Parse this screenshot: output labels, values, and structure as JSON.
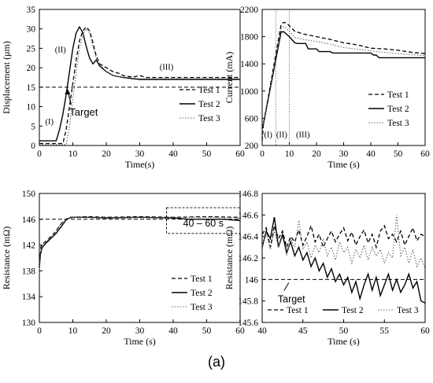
{
  "caption": "(a)",
  "colors": {
    "ink": "#000000",
    "test3": "#666666"
  },
  "chart_data": [
    {
      "type": "line",
      "panel": "top-left",
      "xlabel": "Time(s)",
      "ylabel": "Displacement (μm)",
      "xlim": [
        0,
        60
      ],
      "ylim": [
        0,
        35
      ],
      "xticks": [
        0,
        10,
        20,
        30,
        40,
        50,
        60
      ],
      "yticks": [
        0,
        5,
        10,
        15,
        20,
        25,
        30,
        35
      ],
      "legend": "right",
      "reference_lines": [
        {
          "y": 15,
          "label": "Target"
        }
      ],
      "annotations": [
        {
          "text": "(I)",
          "x": 3,
          "y": 5.5
        },
        {
          "text": "(II)",
          "x": 6.3,
          "y": 24
        },
        {
          "text": "(III)",
          "x": 38,
          "y": 19.5
        }
      ],
      "series": [
        {
          "name": "Test 1",
          "style": "dashed",
          "x": [
            0,
            7,
            8,
            9,
            10,
            11,
            12,
            13,
            14,
            15,
            16,
            17,
            18,
            20,
            22,
            24,
            25,
            26,
            28,
            30,
            32,
            35,
            40,
            45,
            50,
            55,
            60
          ],
          "y": [
            0.5,
            0.5,
            4,
            10,
            16,
            22,
            27,
            29.5,
            30.5,
            29.5,
            26.5,
            23,
            21,
            20,
            19,
            18.5,
            18,
            17.8,
            17.6,
            18,
            17.5,
            17.5,
            17.5,
            17.5,
            17.5,
            17.5,
            17.5
          ]
        },
        {
          "name": "Test 2",
          "style": "solid",
          "x": [
            0,
            5,
            6,
            7,
            8,
            9,
            10,
            11,
            12,
            13,
            14,
            15,
            16,
            17,
            18,
            20,
            22,
            25,
            30,
            35,
            40,
            45,
            50,
            55,
            60
          ],
          "y": [
            1.2,
            1.2,
            4,
            8,
            13,
            19,
            25,
            29,
            30.5,
            29,
            25.5,
            22.5,
            21,
            22,
            20.5,
            19,
            18,
            17.5,
            17,
            17,
            17,
            17,
            17,
            17,
            17
          ]
        },
        {
          "name": "Test 3",
          "style": "dotted",
          "x": [
            0,
            8,
            9,
            10,
            11,
            12,
            13,
            14,
            15,
            16,
            17,
            18,
            20,
            22,
            25,
            30,
            35,
            40,
            45,
            50,
            55,
            60
          ],
          "y": [
            0.2,
            0.2,
            5,
            12,
            19,
            25,
            28.5,
            30,
            29,
            25.5,
            22.5,
            21,
            19,
            18,
            17.5,
            17.2,
            17.2,
            17.2,
            17.2,
            17.2,
            17.2,
            17.2
          ]
        }
      ]
    },
    {
      "type": "line",
      "panel": "top-right",
      "xlabel": "Time (s)",
      "ylabel": "Current (mA)",
      "xlim": [
        0,
        60
      ],
      "ylim": [
        200,
        2200
      ],
      "xticks": [
        0,
        10,
        20,
        30,
        40,
        50,
        60
      ],
      "yticks": [
        200,
        600,
        1000,
        1400,
        1800,
        2200
      ],
      "legend": "right",
      "vertical_lines": [
        5,
        10
      ],
      "annotations": [
        {
          "text": "(I)",
          "x": 2.2,
          "y": 320
        },
        {
          "text": "(II)",
          "x": 7.2,
          "y": 320
        },
        {
          "text": "(III)",
          "x": 15,
          "y": 320
        }
      ],
      "series": [
        {
          "name": "Test 1",
          "style": "dashed",
          "x": [
            0,
            0.5,
            7,
            8,
            9,
            10,
            12,
            15,
            20,
            25,
            30,
            35,
            40,
            45,
            50,
            55,
            60
          ],
          "y": [
            270,
            520,
            1980,
            2010,
            2000,
            1960,
            1880,
            1840,
            1800,
            1760,
            1710,
            1680,
            1630,
            1620,
            1600,
            1570,
            1550
          ]
        },
        {
          "name": "Test 2",
          "style": "solid",
          "x": [
            0,
            0.5,
            7,
            8,
            10,
            12,
            13,
            16,
            17,
            20,
            21,
            25,
            26,
            40,
            41,
            42,
            43,
            50,
            60
          ],
          "y": [
            440,
            520,
            1870,
            1870,
            1800,
            1710,
            1700,
            1700,
            1620,
            1620,
            1580,
            1580,
            1560,
            1560,
            1530,
            1530,
            1490,
            1490,
            1490
          ]
        },
        {
          "name": "Test 3",
          "style": "dotted",
          "x": [
            0,
            0.5,
            7,
            8,
            10,
            12,
            15,
            20,
            25,
            30,
            40,
            50,
            60
          ],
          "y": [
            400,
            520,
            1920,
            1950,
            1880,
            1790,
            1760,
            1730,
            1690,
            1640,
            1590,
            1550,
            1520
          ]
        }
      ]
    },
    {
      "type": "line",
      "panel": "bottom-left",
      "xlabel": "Time (s)",
      "ylabel": "Resistance (mΩ)",
      "xlim": [
        0,
        60
      ],
      "ylim": [
        130,
        150
      ],
      "xticks": [
        0,
        10,
        20,
        30,
        40,
        50,
        60
      ],
      "yticks": [
        130,
        134,
        138,
        142,
        146,
        150
      ],
      "legend": "right",
      "reference_lines": [
        {
          "y": 146
        }
      ],
      "highlight_box": {
        "x": [
          38,
          60
        ],
        "y": [
          143.8,
          147.8
        ],
        "label": "40 – 60 s"
      },
      "series": [
        {
          "name": "Test 1",
          "style": "dashed",
          "x": [
            0,
            0.5,
            1,
            2,
            3,
            4,
            5,
            6,
            7,
            8,
            9,
            10,
            15,
            20,
            30,
            40,
            50,
            60
          ],
          "y": [
            138.5,
            141.8,
            142.2,
            142.6,
            143.1,
            143.6,
            144.2,
            145.0,
            145.6,
            146.0,
            146.3,
            146.3,
            146.4,
            146.3,
            146.4,
            146.3,
            146.4,
            146.3
          ]
        },
        {
          "name": "Test 2",
          "style": "solid",
          "x": [
            0,
            0.3,
            0.8,
            1.5,
            2,
            3,
            4,
            5,
            6,
            7,
            8,
            9,
            10,
            15,
            20,
            30,
            40,
            45,
            50,
            55,
            60
          ],
          "y": [
            138.5,
            140.5,
            141.6,
            142.0,
            142.3,
            142.8,
            143.3,
            143.8,
            144.5,
            145.2,
            145.9,
            146.2,
            146.3,
            146.3,
            146.2,
            146.3,
            146.2,
            146.0,
            146.0,
            146.0,
            145.8
          ]
        },
        {
          "name": "Test 3",
          "style": "dotted",
          "x": [
            0,
            0.5,
            1,
            2,
            3,
            4,
            5,
            6,
            7,
            8,
            9,
            10,
            15,
            20,
            30,
            40,
            50,
            60
          ],
          "y": [
            138.3,
            141.5,
            142.0,
            142.5,
            143.0,
            143.5,
            144.1,
            144.9,
            145.5,
            145.9,
            146.2,
            146.3,
            146.3,
            146.3,
            146.3,
            146.3,
            146.3,
            146.2
          ]
        }
      ]
    },
    {
      "type": "line",
      "panel": "bottom-right",
      "xlabel": "Time (s)",
      "ylabel": "Resistance (mΩ)",
      "xlim": [
        40,
        60
      ],
      "ylim": [
        145.6,
        146.8
      ],
      "xticks": [
        40,
        45,
        50,
        55,
        60
      ],
      "yticks": [
        145.6,
        145.8,
        146,
        146.2,
        146.4,
        146.6,
        146.8
      ],
      "legend": "bottom",
      "reference_lines": [
        {
          "y": 146,
          "label": "Target"
        }
      ],
      "series": [
        {
          "name": "Test 1",
          "style": "dashed",
          "x": [
            40,
            40.5,
            41,
            41.5,
            42,
            42.5,
            43,
            43.5,
            44,
            44.5,
            45,
            45.5,
            46,
            46.5,
            47,
            47.5,
            48,
            48.5,
            49,
            49.5,
            50,
            50.5,
            51,
            51.5,
            52,
            52.5,
            53,
            53.5,
            54,
            54.5,
            55,
            55.5,
            56,
            56.5,
            57,
            57.5,
            58,
            58.5,
            59,
            59.5,
            60
          ],
          "y": [
            146.42,
            146.48,
            146.3,
            146.5,
            146.38,
            146.45,
            146.3,
            146.4,
            146.35,
            146.46,
            146.32,
            146.4,
            146.5,
            146.35,
            146.42,
            146.3,
            146.38,
            146.45,
            146.35,
            146.42,
            146.48,
            146.36,
            146.44,
            146.32,
            146.4,
            146.46,
            146.34,
            146.42,
            146.3,
            146.45,
            146.5,
            146.38,
            146.42,
            146.35,
            146.45,
            146.32,
            146.4,
            146.48,
            146.36,
            146.42,
            146.4
          ]
        },
        {
          "name": "Test 2",
          "style": "solid",
          "x": [
            40,
            40.5,
            41,
            41.5,
            42,
            42.5,
            43,
            43.5,
            44,
            44.5,
            45,
            45.5,
            46,
            46.5,
            47,
            47.5,
            48,
            48.5,
            49,
            49.5,
            50,
            50.5,
            51,
            51.5,
            52,
            52.5,
            53,
            53.5,
            54,
            54.5,
            55,
            55.5,
            56,
            56.5,
            57,
            57.5,
            58,
            58.5,
            59,
            59.5,
            60
          ],
          "y": [
            146.3,
            146.45,
            146.38,
            146.58,
            146.3,
            146.42,
            146.25,
            146.35,
            146.22,
            146.3,
            146.18,
            146.25,
            146.12,
            146.2,
            146.08,
            146.15,
            146.02,
            146.1,
            145.98,
            146.05,
            145.95,
            146.02,
            145.88,
            145.98,
            145.82,
            145.95,
            146.05,
            145.9,
            146.02,
            145.85,
            145.95,
            146.05,
            145.9,
            146.0,
            145.88,
            145.95,
            146.05,
            145.92,
            145.98,
            145.8,
            145.78
          ]
        },
        {
          "name": "Test 3",
          "style": "dotted",
          "x": [
            40,
            40.5,
            41,
            41.5,
            42,
            42.5,
            43,
            43.5,
            44,
            44.5,
            45,
            45.5,
            46,
            46.5,
            47,
            47.5,
            48,
            48.5,
            49,
            49.5,
            50,
            50.5,
            51,
            51.5,
            52,
            52.5,
            53,
            53.5,
            54,
            54.5,
            55,
            55.5,
            56,
            56.5,
            57,
            57.5,
            58,
            58.5,
            59,
            59.5,
            60
          ],
          "y": [
            146.32,
            146.42,
            146.28,
            146.45,
            146.3,
            146.4,
            146.22,
            146.38,
            146.3,
            146.55,
            146.28,
            146.35,
            146.2,
            146.32,
            146.25,
            146.38,
            146.22,
            146.3,
            146.18,
            146.35,
            146.25,
            146.3,
            146.15,
            146.28,
            146.2,
            146.32,
            146.18,
            146.3,
            146.22,
            146.28,
            146.15,
            146.25,
            146.2,
            146.6,
            146.22,
            146.3,
            146.15,
            146.28,
            146.12,
            146.2,
            146.1
          ]
        }
      ]
    }
  ]
}
